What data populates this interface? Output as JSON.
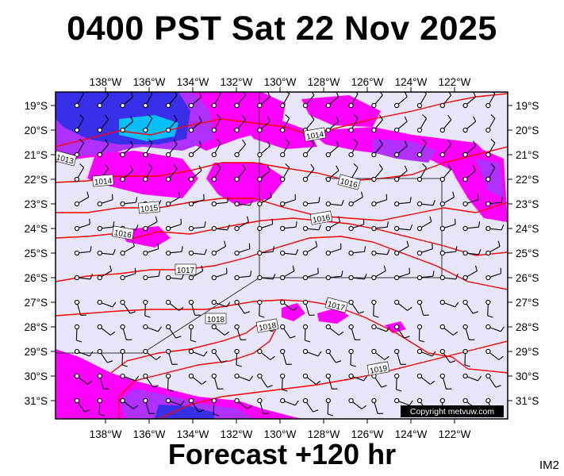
{
  "title": "0400 PST Sat 22 Nov 2025",
  "subtitle": "Forecast +120 hr",
  "image_code": "IM2",
  "copyright": "Copyright metvuw.com",
  "map": {
    "lon_labels": [
      "138°W",
      "136°W",
      "134°W",
      "132°W",
      "130°W",
      "128°W",
      "126°W",
      "124°W",
      "122°W"
    ],
    "lat_labels": [
      "19°S",
      "20°S",
      "21°S",
      "22°S",
      "23°S",
      "24°S",
      "25°S",
      "26°S",
      "27°S",
      "28°S",
      "29°S",
      "30°S",
      "31°S"
    ],
    "isobar_labels": [
      "1013",
      "1014",
      "1014",
      "1015",
      "1016",
      "1016",
      "1016",
      "1017",
      "1017",
      "1018",
      "1018",
      "1019"
    ],
    "colors": {
      "ocean": "#e6e6f8",
      "isobar": "#ff0000",
      "rain_light": "#ff00ff",
      "rain_medium": "#b030ff",
      "rain_heavy": "#3a2fe8",
      "rain_extreme": "#00d8ff"
    }
  }
}
